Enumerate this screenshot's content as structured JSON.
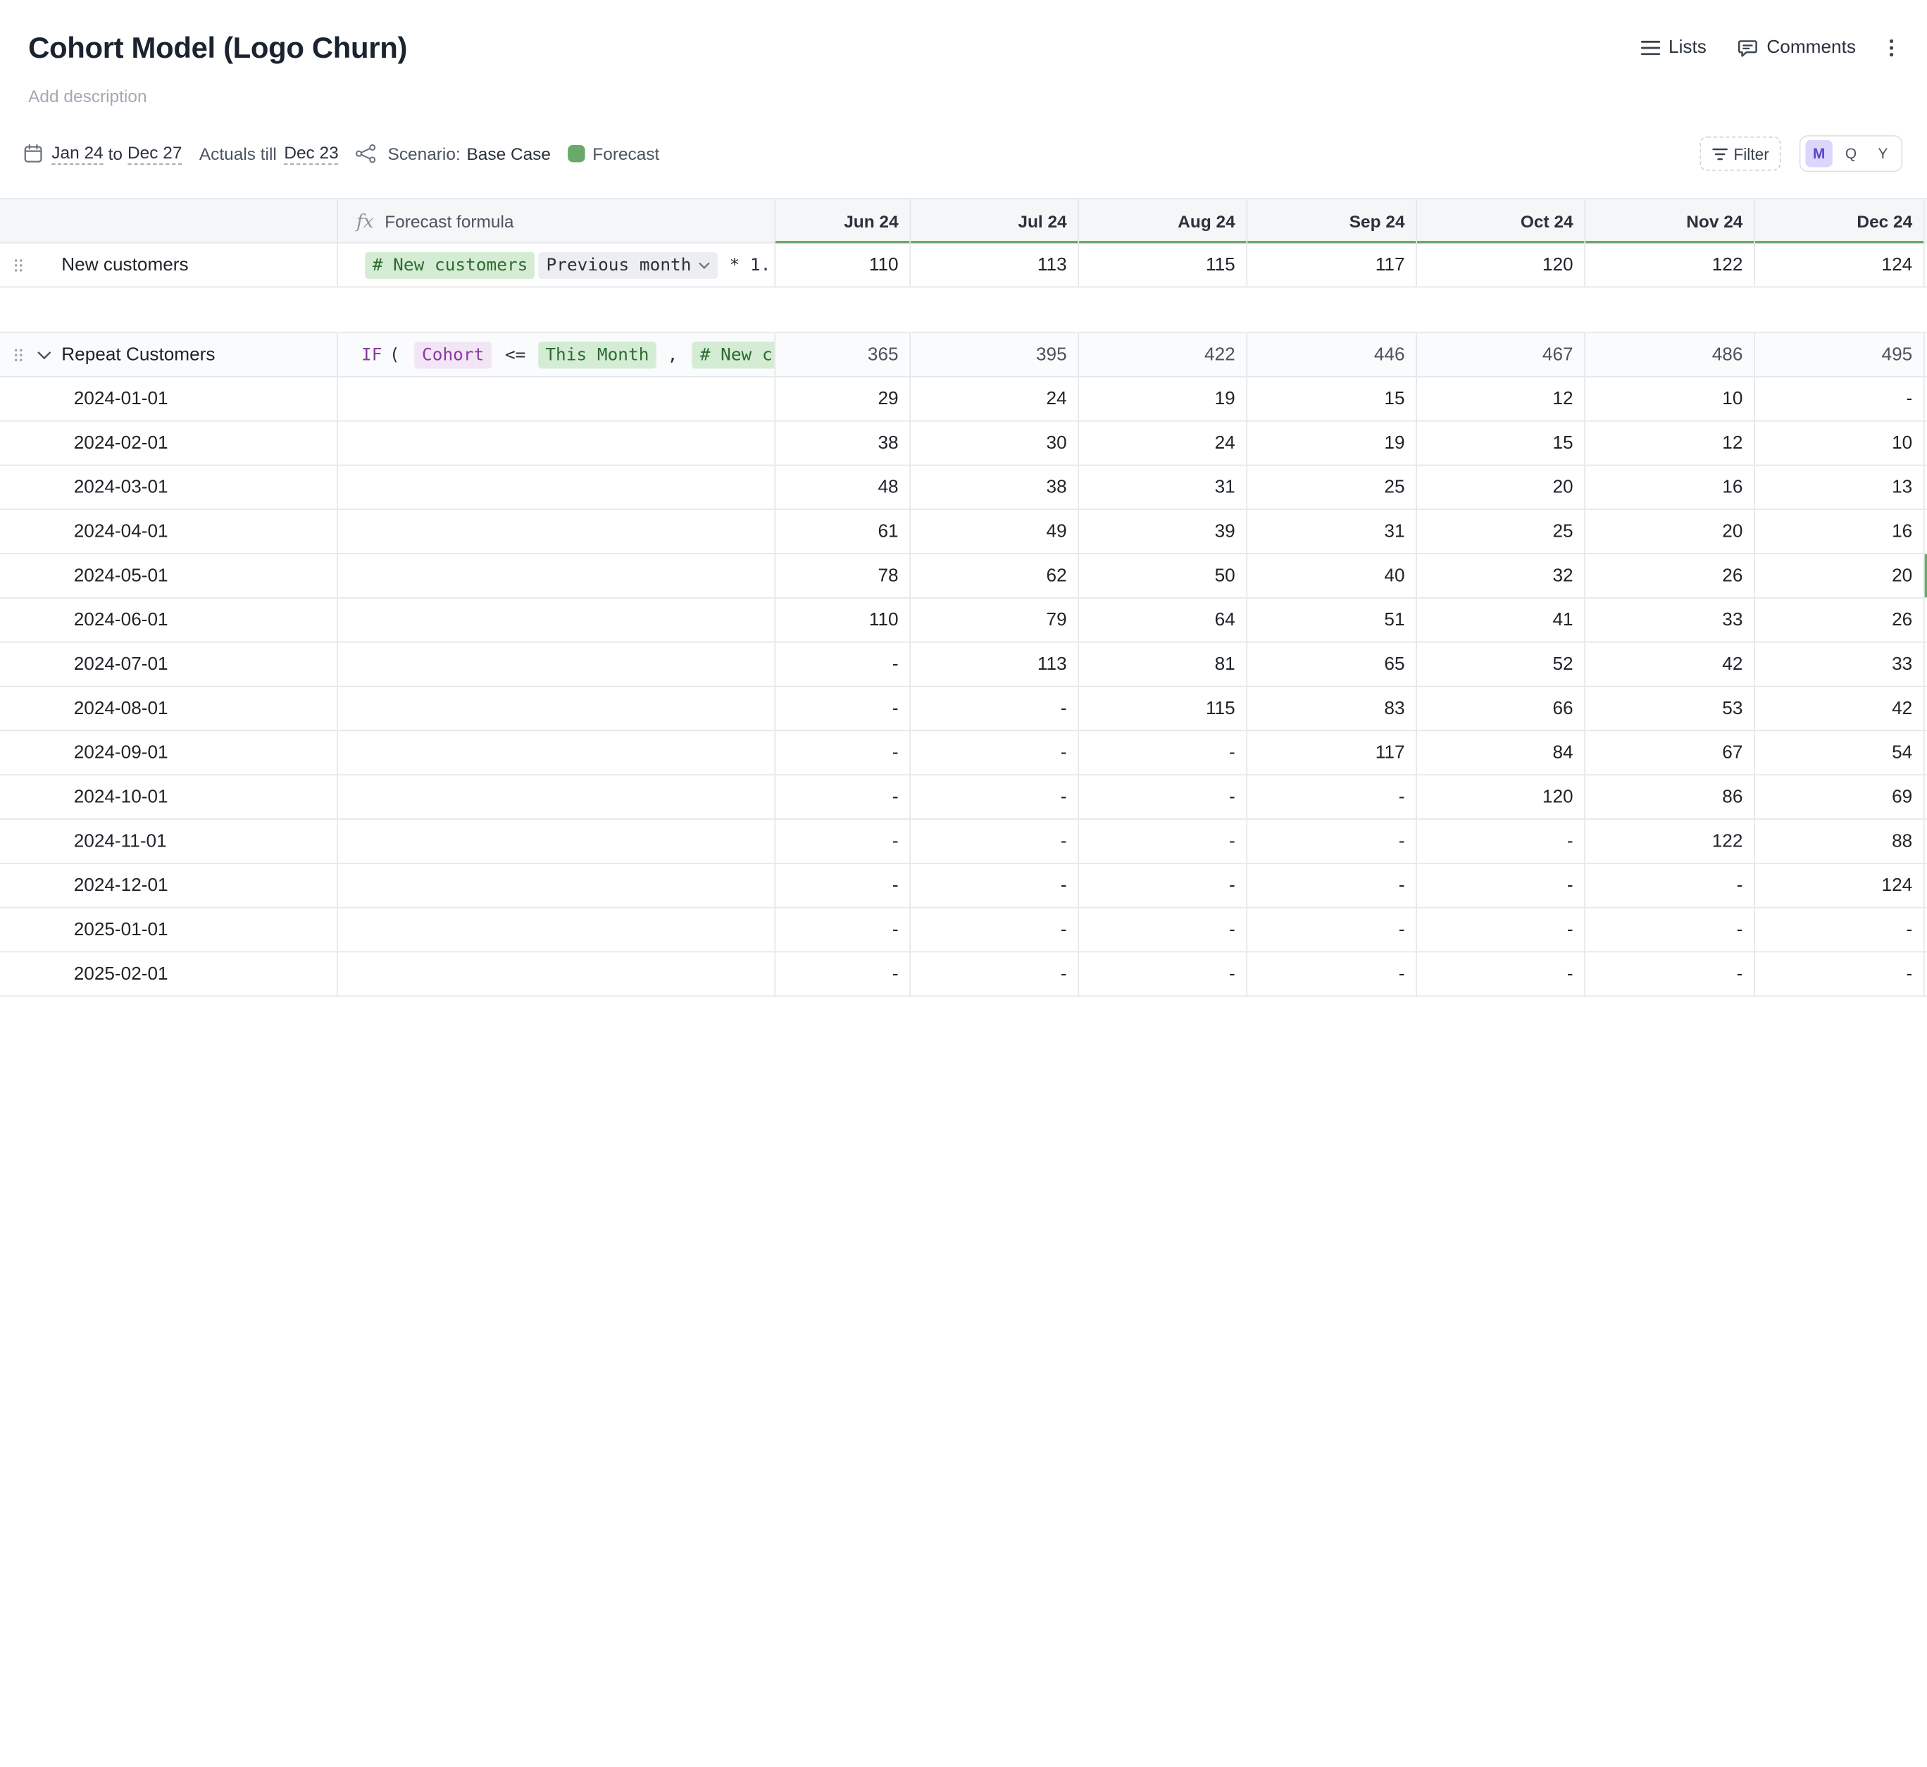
{
  "page": {
    "title": "Cohort Model (Logo Churn)",
    "description_placeholder": "Add description"
  },
  "top_actions": {
    "lists": "Lists",
    "comments": "Comments"
  },
  "toolbar": {
    "date_from": "Jan 24",
    "date_to_word": "to",
    "date_to": "Dec 27",
    "actuals_label": "Actuals till",
    "actuals_value": "Dec 23",
    "scenario_label": "Scenario:",
    "scenario_value": "Base Case",
    "forecast_label": "Forecast",
    "forecast_color": "#6aa96c",
    "filter_label": "Filter",
    "granularity": [
      "M",
      "Q",
      "Y"
    ],
    "granularity_selected": "M"
  },
  "grid": {
    "formula_header": "Forecast formula",
    "columns": [
      "Jun 24",
      "Jul 24",
      "Aug 24",
      "Sep 24",
      "Oct 24",
      "Nov 24",
      "Dec 24"
    ],
    "new_customers": {
      "label": "New customers",
      "formula": {
        "token1": "# New customers",
        "token2": "Previous month",
        "rest": "* 1."
      },
      "values": [
        "110",
        "113",
        "115",
        "117",
        "120",
        "122",
        "124"
      ]
    },
    "repeat_customers": {
      "label": "Repeat Customers",
      "formula": {
        "if": "IF",
        "paren": "(",
        "token1": "Cohort",
        "op": "<=",
        "token2": "This Month",
        "comma": ",",
        "token3": "# New c"
      },
      "values": [
        "365",
        "395",
        "422",
        "446",
        "467",
        "486",
        "495"
      ]
    },
    "cohorts": [
      {
        "label": "2024-01-01",
        "values": [
          "29",
          "24",
          "19",
          "15",
          "12",
          "10",
          "-"
        ]
      },
      {
        "label": "2024-02-01",
        "values": [
          "38",
          "30",
          "24",
          "19",
          "15",
          "12",
          "10"
        ]
      },
      {
        "label": "2024-03-01",
        "values": [
          "48",
          "38",
          "31",
          "25",
          "20",
          "16",
          "13"
        ]
      },
      {
        "label": "2024-04-01",
        "values": [
          "61",
          "49",
          "39",
          "31",
          "25",
          "20",
          "16"
        ]
      },
      {
        "label": "2024-05-01",
        "values": [
          "78",
          "62",
          "50",
          "40",
          "32",
          "26",
          "20"
        ]
      },
      {
        "label": "2024-06-01",
        "values": [
          "110",
          "79",
          "64",
          "51",
          "41",
          "33",
          "26"
        ]
      },
      {
        "label": "2024-07-01",
        "values": [
          "-",
          "113",
          "81",
          "65",
          "52",
          "42",
          "33"
        ]
      },
      {
        "label": "2024-08-01",
        "values": [
          "-",
          "-",
          "115",
          "83",
          "66",
          "53",
          "42"
        ]
      },
      {
        "label": "2024-09-01",
        "values": [
          "-",
          "-",
          "-",
          "117",
          "84",
          "67",
          "54"
        ]
      },
      {
        "label": "2024-10-01",
        "values": [
          "-",
          "-",
          "-",
          "-",
          "120",
          "86",
          "69"
        ]
      },
      {
        "label": "2024-11-01",
        "values": [
          "-",
          "-",
          "-",
          "-",
          "-",
          "122",
          "88"
        ]
      },
      {
        "label": "2024-12-01",
        "values": [
          "-",
          "-",
          "-",
          "-",
          "-",
          "-",
          "124"
        ]
      },
      {
        "label": "2025-01-01",
        "values": [
          "-",
          "-",
          "-",
          "-",
          "-",
          "-",
          "-"
        ]
      },
      {
        "label": "2025-02-01",
        "values": [
          "-",
          "-",
          "-",
          "-",
          "-",
          "-",
          "-"
        ]
      }
    ]
  }
}
